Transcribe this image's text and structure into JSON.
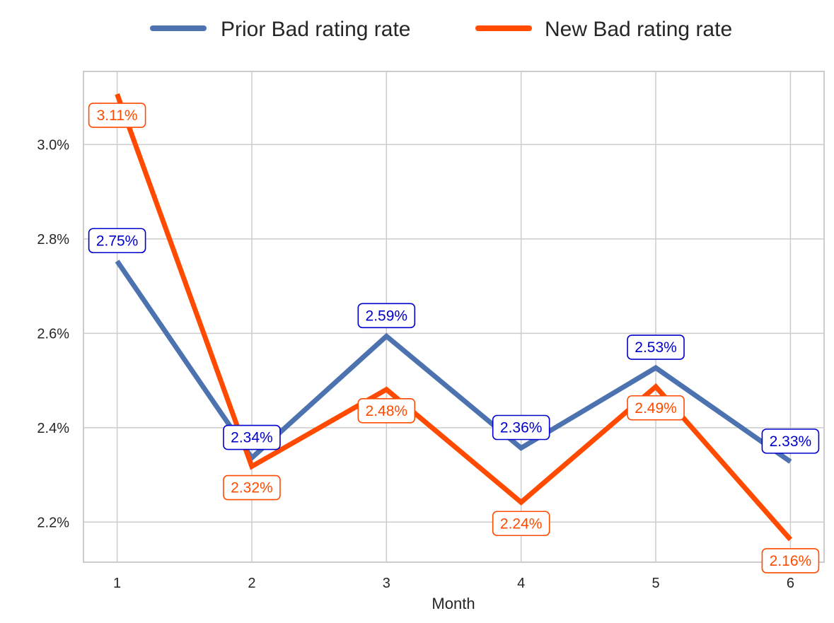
{
  "chart_data": {
    "type": "line",
    "xlabel": "Month",
    "ylabel": "",
    "x": [
      1,
      2,
      3,
      4,
      5,
      6
    ],
    "x_tick_labels": [
      "1",
      "2",
      "3",
      "4",
      "5",
      "6"
    ],
    "y_tick_values": [
      2.2,
      2.4,
      2.6,
      2.8,
      3.0
    ],
    "y_tick_labels": [
      "2.2%",
      "2.4%",
      "2.6%",
      "2.8%",
      "3.0%"
    ],
    "xlim": [
      0.75,
      6.25
    ],
    "ylim": [
      2.115,
      3.155
    ],
    "grid": true,
    "legend_position": "top-center",
    "series": [
      {
        "name": "Prior Bad rating rate",
        "color": "#4c72b0",
        "label_color": "#0000cc",
        "label_position": "above",
        "values": [
          2.753,
          2.336,
          2.594,
          2.357,
          2.527,
          2.328
        ],
        "labels": [
          "2.75%",
          "2.34%",
          "2.59%",
          "2.36%",
          "2.53%",
          "2.33%"
        ]
      },
      {
        "name": "New Bad rating rate",
        "color": "#ff4a00",
        "label_color": "#ff4a00",
        "label_position": "below",
        "values": [
          3.107,
          2.318,
          2.481,
          2.242,
          2.487,
          2.163
        ],
        "labels": [
          "3.11%",
          "2.32%",
          "2.48%",
          "2.24%",
          "2.49%",
          "2.16%"
        ]
      }
    ]
  }
}
